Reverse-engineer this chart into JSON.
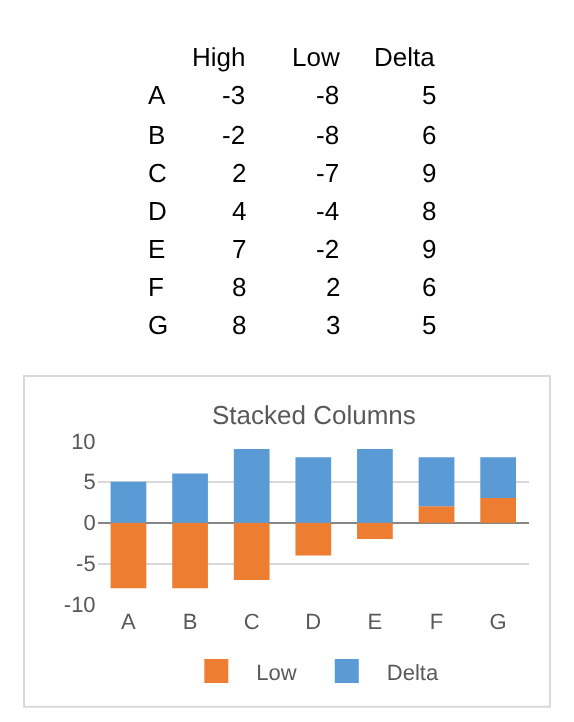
{
  "chart_data": [
    {
      "type": "other",
      "categories": [
        "A",
        "B",
        "C",
        "D",
        "E",
        "F",
        "G"
      ],
      "series": [
        {
          "name": "High",
          "values": [
            -3,
            -2,
            2,
            4,
            7,
            8,
            8
          ]
        },
        {
          "name": "Low",
          "values": [
            -8,
            -8,
            -7,
            -4,
            -2,
            2,
            3
          ]
        },
        {
          "name": "Delta",
          "values": [
            5,
            6,
            9,
            8,
            9,
            6,
            5
          ]
        }
      ],
      "data_labels": true
    },
    {
      "type": "bar",
      "title": "Stacked Columns",
      "stacked": true,
      "categories": [
        "A",
        "B",
        "C",
        "D",
        "E",
        "F",
        "G"
      ],
      "series": [
        {
          "name": "Low",
          "color": "#ed7d31",
          "values": [
            -8,
            -8,
            -7,
            -4,
            -2,
            2,
            3
          ]
        },
        {
          "name": "Delta",
          "color": "#5b9bd5",
          "values": [
            5,
            6,
            9,
            8,
            9,
            6,
            5
          ]
        }
      ],
      "ylim": [
        -10,
        10
      ],
      "yticks": [
        -10,
        -5,
        0,
        5,
        10
      ],
      "grid": "y",
      "legend": "bottom"
    }
  ]
}
